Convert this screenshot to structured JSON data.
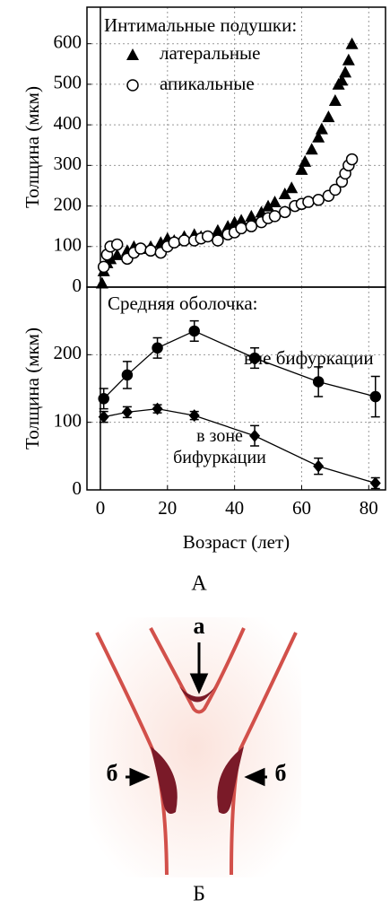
{
  "chart_data": [
    {
      "type": "scatter",
      "ylabel": "Толщина (мкм)",
      "legend_title": "Интимальные подушки:",
      "xlim": [
        -4,
        85
      ],
      "xticks": [
        0,
        20,
        40,
        60,
        80
      ],
      "ylim": [
        0,
        690
      ],
      "yticks": [
        0,
        100,
        200,
        300,
        400,
        500,
        600
      ],
      "grid": true,
      "series": [
        {
          "name": "латеральные",
          "marker": "triangle",
          "color": "#000000",
          "x": [
            0.5,
            1,
            2,
            3,
            5,
            8,
            10,
            12,
            15,
            18,
            20,
            22,
            25,
            28,
            30,
            35,
            38,
            40,
            42,
            45,
            48,
            50,
            52,
            55,
            57,
            60,
            61,
            63,
            65,
            66,
            68,
            70,
            71,
            72,
            73,
            74,
            75
          ],
          "values": [
            10,
            40,
            60,
            70,
            80,
            90,
            100,
            95,
            100,
            110,
            120,
            115,
            125,
            130,
            125,
            140,
            150,
            160,
            165,
            175,
            185,
            200,
            210,
            230,
            245,
            290,
            310,
            340,
            370,
            390,
            420,
            460,
            500,
            510,
            530,
            560,
            600
          ]
        },
        {
          "name": "апикальные",
          "marker": "circle",
          "color": "#000000",
          "x": [
            1,
            2,
            3,
            5,
            8,
            10,
            12,
            15,
            18,
            20,
            22,
            25,
            28,
            30,
            32,
            35,
            38,
            40,
            42,
            45,
            48,
            50,
            52,
            55,
            58,
            60,
            62,
            65,
            68,
            70,
            72,
            73,
            74,
            75
          ],
          "values": [
            50,
            80,
            100,
            105,
            70,
            85,
            95,
            90,
            85,
            100,
            110,
            115,
            115,
            120,
            125,
            115,
            130,
            135,
            145,
            150,
            160,
            170,
            175,
            185,
            200,
            205,
            210,
            215,
            225,
            240,
            260,
            280,
            300,
            315
          ]
        }
      ]
    },
    {
      "type": "line",
      "ylabel": "Толщина (мкм)",
      "xlabel": "Возраст (лет)",
      "legend_title": "Средняя оболочка:",
      "xlim": [
        -4,
        85
      ],
      "xticks": [
        0,
        20,
        40,
        60,
        80
      ],
      "ylim": [
        0,
        300
      ],
      "yticks": [
        0,
        100,
        200
      ],
      "grid": true,
      "series": [
        {
          "name": "вне бифуркации",
          "marker": "circle",
          "color": "#000000",
          "x": [
            1,
            8,
            17,
            28,
            46,
            65,
            82
          ],
          "values": [
            135,
            170,
            210,
            235,
            195,
            160,
            138
          ],
          "errors": [
            15,
            20,
            15,
            15,
            15,
            22,
            30
          ]
        },
        {
          "name": "в зоне бифуркации",
          "marker": "diamond",
          "color": "#000000",
          "x": [
            1,
            8,
            17,
            28,
            46,
            65,
            82
          ],
          "values": [
            108,
            115,
            120,
            110,
            80,
            35,
            10
          ],
          "errors": [
            8,
            8,
            6,
            6,
            15,
            12,
            8
          ]
        }
      ]
    }
  ],
  "captions": [
    "А",
    "Б"
  ],
  "diagram": {
    "labels": [
      "а",
      "б",
      "б"
    ]
  }
}
